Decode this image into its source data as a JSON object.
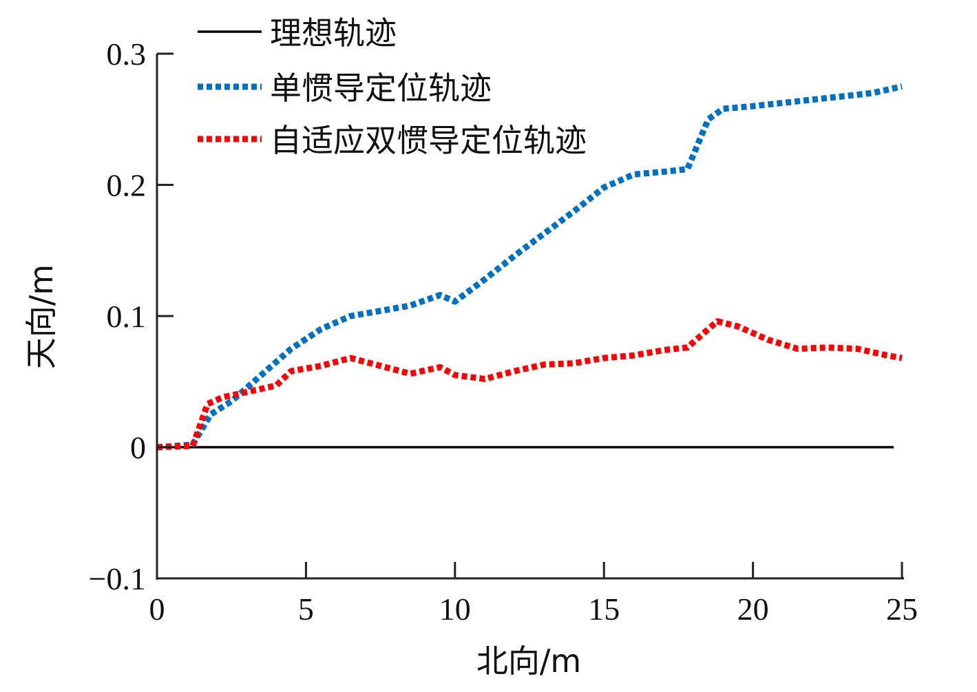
{
  "chart_data": {
    "type": "line",
    "xlabel": "北向/m",
    "ylabel": "天向/m",
    "xlim": [
      0,
      25
    ],
    "ylim": [
      -0.1,
      0.3
    ],
    "xticks": [
      0,
      5,
      10,
      15,
      20,
      25
    ],
    "xtick_labels": [
      "0",
      "5",
      "10",
      "15",
      "20",
      "25"
    ],
    "yticks": [
      -0.1,
      0,
      0.1,
      0.2,
      0.3
    ],
    "ytick_labels": [
      "−0.1",
      "0",
      "0.1",
      "0.2",
      "0.3"
    ],
    "grid": false,
    "legend_position": "top-left",
    "series": [
      {
        "name": "理想轨迹",
        "color": "#000000",
        "style": "solid",
        "x": [
          0,
          25
        ],
        "y": [
          0,
          0
        ]
      },
      {
        "name": "单惯导定位轨迹",
        "color": "#0070C0",
        "style": "dotted",
        "x": [
          0,
          1.2,
          1.8,
          2.5,
          3.5,
          4.5,
          5.5,
          6.5,
          7.5,
          8.5,
          9.5,
          10.0,
          11.0,
          12.0,
          13.0,
          14.0,
          15.0,
          16.0,
          17.0,
          17.8,
          18.5,
          19.0,
          20.0,
          22.0,
          24.0,
          25.0
        ],
        "y": [
          0,
          0.002,
          0.025,
          0.035,
          0.055,
          0.075,
          0.09,
          0.1,
          0.104,
          0.108,
          0.116,
          0.111,
          0.128,
          0.146,
          0.163,
          0.18,
          0.198,
          0.208,
          0.21,
          0.212,
          0.25,
          0.258,
          0.26,
          0.265,
          0.27,
          0.275
        ]
      },
      {
        "name": "自适应双惯导定位轨迹",
        "color": "#FF0000",
        "style": "dotted",
        "x": [
          0,
          1.2,
          1.7,
          2.2,
          3.0,
          4.0,
          4.5,
          5.5,
          6.5,
          7.5,
          8.5,
          9.5,
          10.0,
          11.0,
          12.0,
          13.0,
          14.0,
          15.0,
          16.0,
          17.0,
          17.8,
          18.8,
          19.5,
          20.5,
          21.5,
          22.5,
          23.5,
          24.5,
          25.0
        ],
        "y": [
          0,
          0.001,
          0.033,
          0.038,
          0.042,
          0.047,
          0.058,
          0.062,
          0.068,
          0.062,
          0.056,
          0.061,
          0.055,
          0.052,
          0.058,
          0.063,
          0.064,
          0.068,
          0.07,
          0.074,
          0.076,
          0.096,
          0.092,
          0.082,
          0.075,
          0.076,
          0.075,
          0.07,
          0.068
        ]
      }
    ]
  }
}
